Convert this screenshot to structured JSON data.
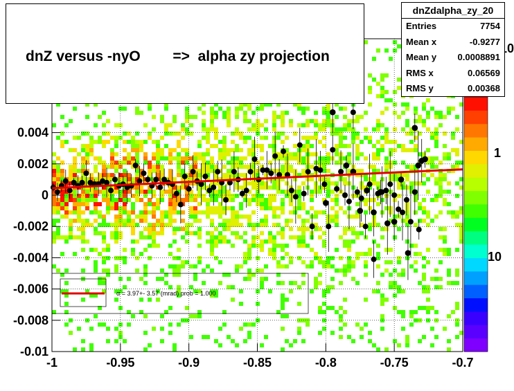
{
  "title": "dnZ versus -nyO        =>  alpha zy projection",
  "stats": {
    "name": "dnZdalpha_zy_20",
    "rows": [
      {
        "label": "Entries",
        "value": "7754"
      },
      {
        "label": "Mean x",
        "value": "-0.9277"
      },
      {
        "label": "Mean y",
        "value": "0.0008891"
      },
      {
        "label": "RMS x",
        "value": "0.06569"
      },
      {
        "label": "RMS y",
        "value": "0.00368"
      }
    ]
  },
  "fit_legend": "α =   3.97+- 3.57 (mrad) prob = 1.000",
  "colorbar_labels": [
    "10",
    "1",
    "10"
  ],
  "colors": {
    "fit_line": "#e00000",
    "points": "#000000",
    "palette": [
      "#7f00ff",
      "#5a00ff",
      "#3a00ff",
      "#0010ff",
      "#0060ff",
      "#00a0ff",
      "#00d8ff",
      "#00ffd0",
      "#00ff80",
      "#00ff20",
      "#40ff00",
      "#80ff00",
      "#b8ff00",
      "#e0f000",
      "#ffd800",
      "#ffaa00",
      "#ff7700",
      "#ff4000",
      "#ff1000"
    ]
  },
  "chart_data": {
    "type": "scatter",
    "xlim": [
      -1.0,
      -0.7
    ],
    "ylim": [
      -0.01,
      0.01
    ],
    "xticks": [
      "-1",
      "-0.95",
      "-0.9",
      "-0.85",
      "-0.8",
      "-0.75",
      "-0.7"
    ],
    "xtick_values": [
      -1.0,
      -0.95,
      -0.9,
      -0.85,
      -0.8,
      -0.75,
      -0.7
    ],
    "yticks": [
      "-0.01",
      "-0.008",
      "-0.006",
      "-0.004",
      "-0.002",
      "0",
      "0.002",
      "0.004"
    ],
    "ytick_values": [
      -0.01,
      -0.008,
      -0.006,
      -0.004,
      -0.002,
      0.0,
      0.002,
      0.004
    ],
    "grid": true,
    "fit_line": {
      "x": [
        -1.0,
        -0.7
      ],
      "y": [
        0.00045,
        0.00165
      ]
    },
    "profile_points": {
      "x": [
        -0.999,
        -0.996,
        -0.993,
        -0.99,
        -0.987,
        -0.984,
        -0.981,
        -0.978,
        -0.975,
        -0.972,
        -0.969,
        -0.966,
        -0.963,
        -0.96,
        -0.957,
        -0.954,
        -0.951,
        -0.948,
        -0.945,
        -0.942,
        -0.939,
        -0.936,
        -0.933,
        -0.93,
        -0.927,
        -0.924,
        -0.921,
        -0.918,
        -0.915,
        -0.912,
        -0.909,
        -0.906,
        -0.903,
        -0.9,
        -0.897,
        -0.894,
        -0.891,
        -0.888,
        -0.885,
        -0.882,
        -0.879,
        -0.876,
        -0.873,
        -0.87,
        -0.867,
        -0.864,
        -0.861,
        -0.858,
        -0.855,
        -0.852,
        -0.849,
        -0.846,
        -0.843,
        -0.84,
        -0.837,
        -0.834,
        -0.831,
        -0.828,
        -0.825,
        -0.822,
        -0.819,
        -0.816,
        -0.813,
        -0.81,
        -0.807,
        -0.804,
        -0.801,
        -0.798,
        -0.795,
        -0.792,
        -0.789,
        -0.786,
        -0.783,
        -0.78,
        -0.777,
        -0.774,
        -0.771,
        -0.768,
        -0.765,
        -0.762,
        -0.759,
        -0.756,
        -0.753,
        -0.75,
        -0.747,
        -0.744,
        -0.741,
        -0.738,
        -0.735,
        -0.732
      ],
      "y": [
        0.0005,
        0.0002,
        0.0006,
        0.0009,
        0.0003,
        0.0008,
        0.0006,
        0.0008,
        0.0014,
        0.0008,
        0.0007,
        0.0007,
        0.0009,
        0.0008,
        0.0003,
        0.001,
        0.0006,
        0.0007,
        0.0005,
        0.0006,
        0.0019,
        0.0009,
        0.0014,
        0.001,
        0.0006,
        0.001,
        0.0005,
        0.001,
        0.0008,
        0.0007,
        0.0001,
        -0.0006,
        0.0012,
        0.0004,
        0.0015,
        0.0009,
        0.0007,
        0.0012,
        0.0003,
        0.0005,
        0.0015,
        0.0008,
        -0.0003,
        0.0008,
        0.0015,
        0.001,
        0.0001,
        0.0003,
        0.0015,
        0.0023,
        0.001,
        0.0016,
        0.0016,
        0.0014,
        0.0025,
        0.0013,
        0.0028,
        0.0013,
        0.0003,
        -0.0001,
        0.0032,
        0.0001,
        0.0015,
        -0.002,
        0.0017,
        0.0016,
        0.0007,
        -0.002,
        0.0029,
        0.0004,
        0.0015,
        0.0,
        -0.0004,
        0.0053,
        0.0002,
        -0.0002,
        -0.002,
        0.0007,
        -0.0041,
        0.0001,
        0.0002,
        0.0003,
        0.0007,
        0.0,
        -0.0009,
        -0.0011,
        -0.0003,
        -0.0017,
        0.0002,
        -0.0022
      ]
    },
    "profile_points_2": {
      "x": [
        -0.8,
        -0.795,
        -0.785,
        -0.78,
        -0.775,
        -0.77,
        -0.765,
        -0.76,
        -0.755,
        -0.75,
        -0.745,
        -0.74,
        -0.735,
        -0.7325,
        -0.73,
        -0.7275
      ],
      "y": [
        -0.0005,
        0.0053,
        0.0019,
        0.0015,
        -0.001,
        0.0003,
        -0.0011,
        0.0002,
        -0.0018,
        -0.0017,
        0.001,
        -0.0037,
        0.0043,
        0.0019,
        0.0022,
        0.0023
      ]
    },
    "density_notes": "2D histogram of dnZ vs -nyO, color scale logarithmic"
  }
}
